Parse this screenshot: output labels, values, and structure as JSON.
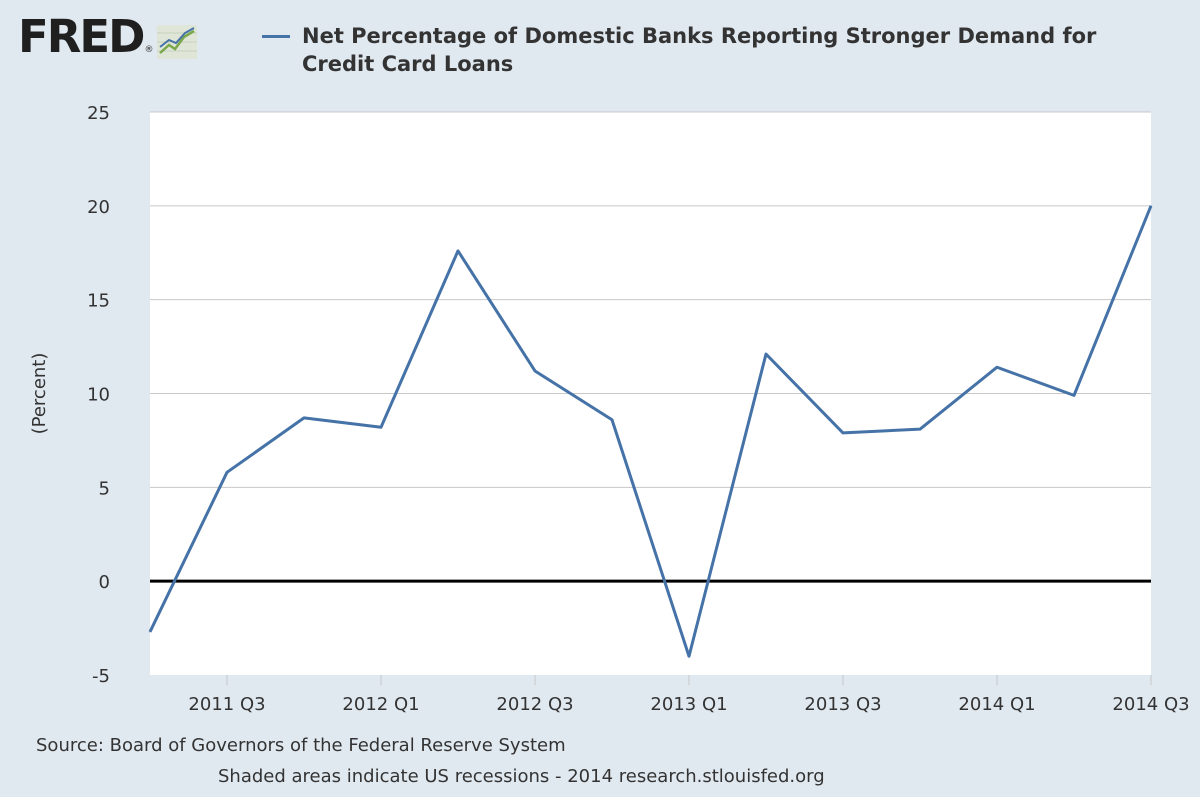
{
  "header": {
    "logo_text": "FRED",
    "logo_mark": "®"
  },
  "footer": {
    "source": "Source: Board of Governors of the Federal Reserve System",
    "note": "Shaded areas indicate US recessions - 2014 research.stlouisfed.org"
  },
  "colors": {
    "line": "#4572a7",
    "background": "#e1e9f0",
    "plot_background": "#ffffff",
    "grid": "#c8c8c8",
    "zero_line": "#000000"
  },
  "chart_data": {
    "type": "line",
    "title": "",
    "xlabel": "",
    "ylabel": "(Percent)",
    "ylim": [
      -5,
      25
    ],
    "yticks": [
      -5,
      0,
      5,
      10,
      15,
      20,
      25
    ],
    "xtick_labels": [
      "2011 Q3",
      "2012 Q1",
      "2012 Q3",
      "2013 Q1",
      "2013 Q3",
      "2014 Q1",
      "2014 Q3"
    ],
    "grid": true,
    "legend_position": "top",
    "series": [
      {
        "name": "Net Percentage of Domestic Banks Reporting Stronger Demand for Credit Card Loans",
        "x": [
          "2011 Q2",
          "2011 Q3",
          "2011 Q4",
          "2012 Q1",
          "2012 Q2",
          "2012 Q3",
          "2012 Q4",
          "2013 Q1",
          "2013 Q2",
          "2013 Q3",
          "2013 Q4",
          "2014 Q1",
          "2014 Q2",
          "2014 Q3"
        ],
        "values": [
          -2.7,
          5.8,
          8.7,
          8.2,
          17.6,
          11.2,
          8.6,
          -4.0,
          12.1,
          7.9,
          8.1,
          11.4,
          9.9,
          20.0
        ]
      }
    ]
  }
}
